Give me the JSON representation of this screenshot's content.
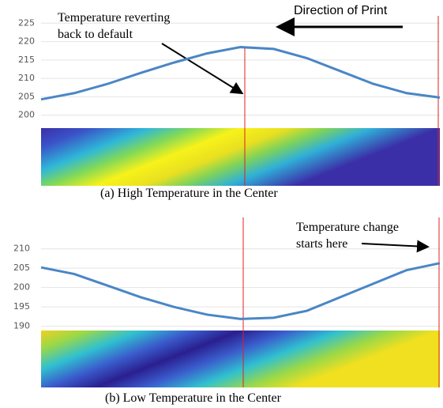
{
  "chart_data": [
    {
      "type": "line",
      "caption": "(a) High Temperature in the Center",
      "annotation": [
        "Temperature reverting",
        "back to default"
      ],
      "direction_label": "Direction of Print",
      "categories": [
        null,
        null,
        null,
        null,
        null,
        null,
        null,
        null,
        null,
        null,
        null,
        null,
        null
      ],
      "series": [
        {
          "color": "#4a86c5",
          "values": [
            204.3,
            206,
            208.5,
            211.5,
            214.3,
            216.8,
            218.5,
            218,
            215.5,
            212,
            208.5,
            206,
            204.8
          ]
        }
      ],
      "ylim": [
        198,
        227
      ],
      "yticks": [
        200,
        205,
        210,
        215,
        220,
        225
      ],
      "grid": true
    },
    {
      "type": "line",
      "caption": "(b) Low Temperature in the Center",
      "annotation": [
        "Temperature change",
        "starts here"
      ],
      "categories": [
        null,
        null,
        null,
        null,
        null,
        null,
        null,
        null,
        null,
        null,
        null,
        null,
        null
      ],
      "series": [
        {
          "color": "#4a86c5",
          "values": [
            205.2,
            203.5,
            200.5,
            197.5,
            195,
            193,
            191.9,
            192.2,
            194,
            197.5,
            201,
            204.5,
            206.3
          ]
        }
      ],
      "ylim": [
        188.5,
        213
      ],
      "yticks": [
        190,
        195,
        200,
        205,
        210
      ],
      "grid": true
    }
  ]
}
